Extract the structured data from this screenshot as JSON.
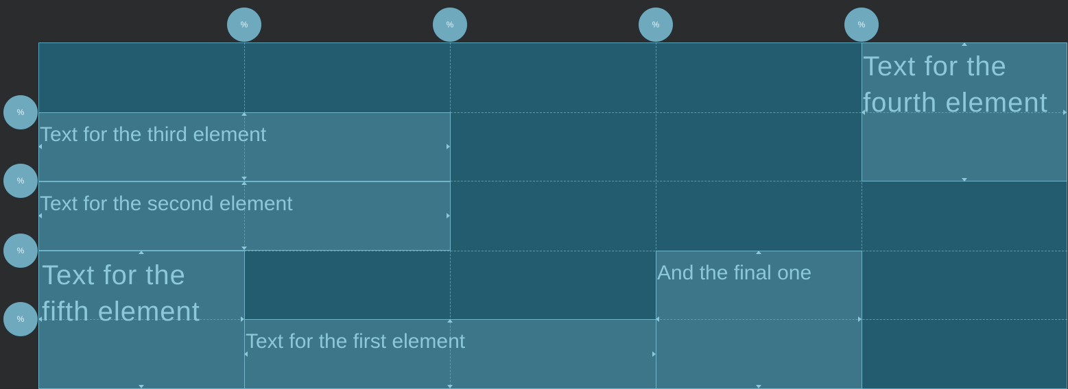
{
  "handles": {
    "column_label": "%",
    "row_label": "%"
  },
  "elements": {
    "first": "Text for the first element",
    "second": "Text for the second element",
    "third": "Text for the third element",
    "fourth": "Text for the fourth element",
    "fifth": "Text for the fifth element",
    "sixth": "And the final one"
  },
  "colors": {
    "background": "#2b2c2e",
    "grid_fill": "#225c6e",
    "element_fill": "#3a7688",
    "text": "#8cc8da",
    "handle": "#6fa9be"
  }
}
